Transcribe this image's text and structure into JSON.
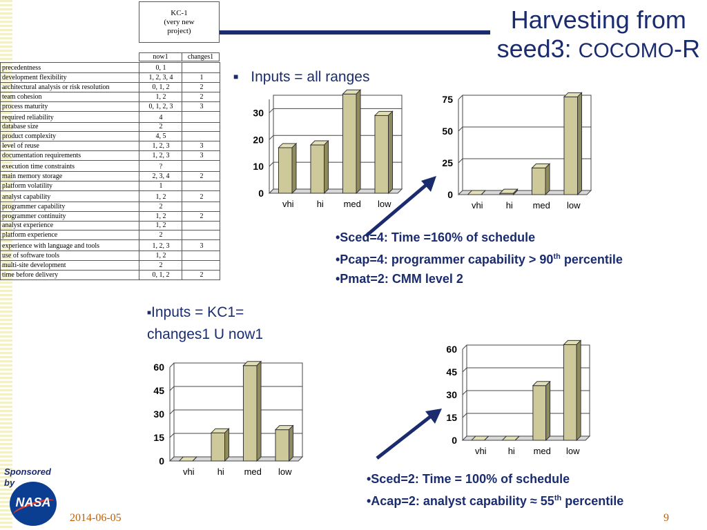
{
  "title": {
    "line1": "Harvesting from",
    "line2_prefix": "seed3: ",
    "line2_smallcaps": "COCOMO",
    "line2_suffix": "-R"
  },
  "table": {
    "kc_header": "KC-1\n(very new\nproject)",
    "col_now1": "now1",
    "col_changes1": "changes1",
    "rows": [
      {
        "name": "precedentness",
        "now1": "0, 1",
        "changes1": ""
      },
      {
        "name": "development flexibility",
        "now1": "1, 2, 3, 4",
        "changes1": "1"
      },
      {
        "name": "architectural analysis or risk resolution",
        "now1": "0, 1, 2",
        "changes1": "2"
      },
      {
        "name": "team cohesion",
        "now1": "1, 2",
        "changes1": "2"
      },
      {
        "name": "process maturity",
        "now1": "0, 1, 2, 3",
        "changes1": "3"
      },
      {
        "name": "required reliability",
        "now1": "4",
        "changes1": ""
      },
      {
        "name": "database size",
        "now1": "2",
        "changes1": ""
      },
      {
        "name": "product complexity",
        "now1": "4, 5",
        "changes1": ""
      },
      {
        "name": "level of reuse",
        "now1": "1, 2, 3",
        "changes1": "3"
      },
      {
        "name": "documentation requirements",
        "now1": "1, 2, 3",
        "changes1": "3"
      },
      {
        "name": "execution time constraints",
        "now1": "?",
        "changes1": ""
      },
      {
        "name": "main memory storage",
        "now1": "2, 3, 4",
        "changes1": "2"
      },
      {
        "name": "platform volatility",
        "now1": "1",
        "changes1": ""
      },
      {
        "name": "analyst capability",
        "now1": "1, 2",
        "changes1": "2"
      },
      {
        "name": "programmer capability",
        "now1": "2",
        "changes1": ""
      },
      {
        "name": "programmer continuity",
        "now1": "1, 2",
        "changes1": "2"
      },
      {
        "name": "analyst experience",
        "now1": "1, 2",
        "changes1": ""
      },
      {
        "name": "platform experience",
        "now1": "2",
        "changes1": ""
      },
      {
        "name": "experience with language and tools",
        "now1": "1, 2, 3",
        "changes1": "3"
      },
      {
        "name": "use of software tools",
        "now1": "1, 2",
        "changes1": ""
      },
      {
        "name": "multi-site development",
        "now1": "2",
        "changes1": ""
      },
      {
        "name": "time before delivery",
        "now1": "0, 1, 2",
        "changes1": "2"
      }
    ]
  },
  "bullets": {
    "b1": "Inputs = all ranges",
    "b2_line1": "Inputs = KC1=",
    "b2_line2": "changes1 U now1"
  },
  "notes_top": [
    {
      "prefix": "•Sced=4: Time =160% of schedule",
      "sup": "",
      "suffix": ""
    },
    {
      "prefix": "•Pcap=4: programmer capability > 90",
      "sup": "th",
      "suffix": " percentile"
    },
    {
      "prefix": "•Pmat=2: CMM level 2",
      "sup": "",
      "suffix": ""
    }
  ],
  "notes_bottom": [
    {
      "prefix": "•Sced=2: Time = 100% of schedule",
      "sup": "",
      "suffix": ""
    },
    {
      "prefix": "•Acap=2: analyst capability ≈ 55",
      "sup": "th",
      "suffix": "  percentile"
    }
  ],
  "chart_data": [
    {
      "type": "bar",
      "categories": [
        "vhi",
        "hi",
        "med",
        "low"
      ],
      "values": [
        17,
        18,
        37,
        29
      ],
      "ylim": [
        0,
        35
      ],
      "yticks": [
        0,
        10,
        20,
        30
      ],
      "grid": true
    },
    {
      "type": "bar",
      "categories": [
        "vhi",
        "hi",
        "med",
        "low"
      ],
      "values": [
        0,
        1,
        21,
        77
      ],
      "ylim": [
        0,
        75
      ],
      "yticks": [
        0,
        25,
        50,
        75
      ],
      "grid": true
    },
    {
      "type": "bar",
      "categories": [
        "vhi",
        "hi",
        "med",
        "low"
      ],
      "values": [
        0,
        18,
        61,
        20
      ],
      "ylim": [
        0,
        60
      ],
      "yticks": [
        0,
        15,
        30,
        45,
        60
      ],
      "grid": true
    },
    {
      "type": "bar",
      "categories": [
        "vhi",
        "hi",
        "med",
        "low"
      ],
      "values": [
        0,
        0,
        36,
        63
      ],
      "ylim": [
        0,
        60
      ],
      "yticks": [
        0,
        15,
        30,
        45,
        60
      ],
      "grid": true
    }
  ],
  "colors": {
    "bar_fill": "#cdc99a",
    "bar_top": "#e2dfb7",
    "bar_side": "#8f8b5c",
    "title": "#1a2c6e",
    "footer": "#c06000"
  },
  "footer": {
    "sponsored": "Sponsored\nby",
    "logo_text": "NASA",
    "date": "2014-06-05",
    "page": "9"
  }
}
